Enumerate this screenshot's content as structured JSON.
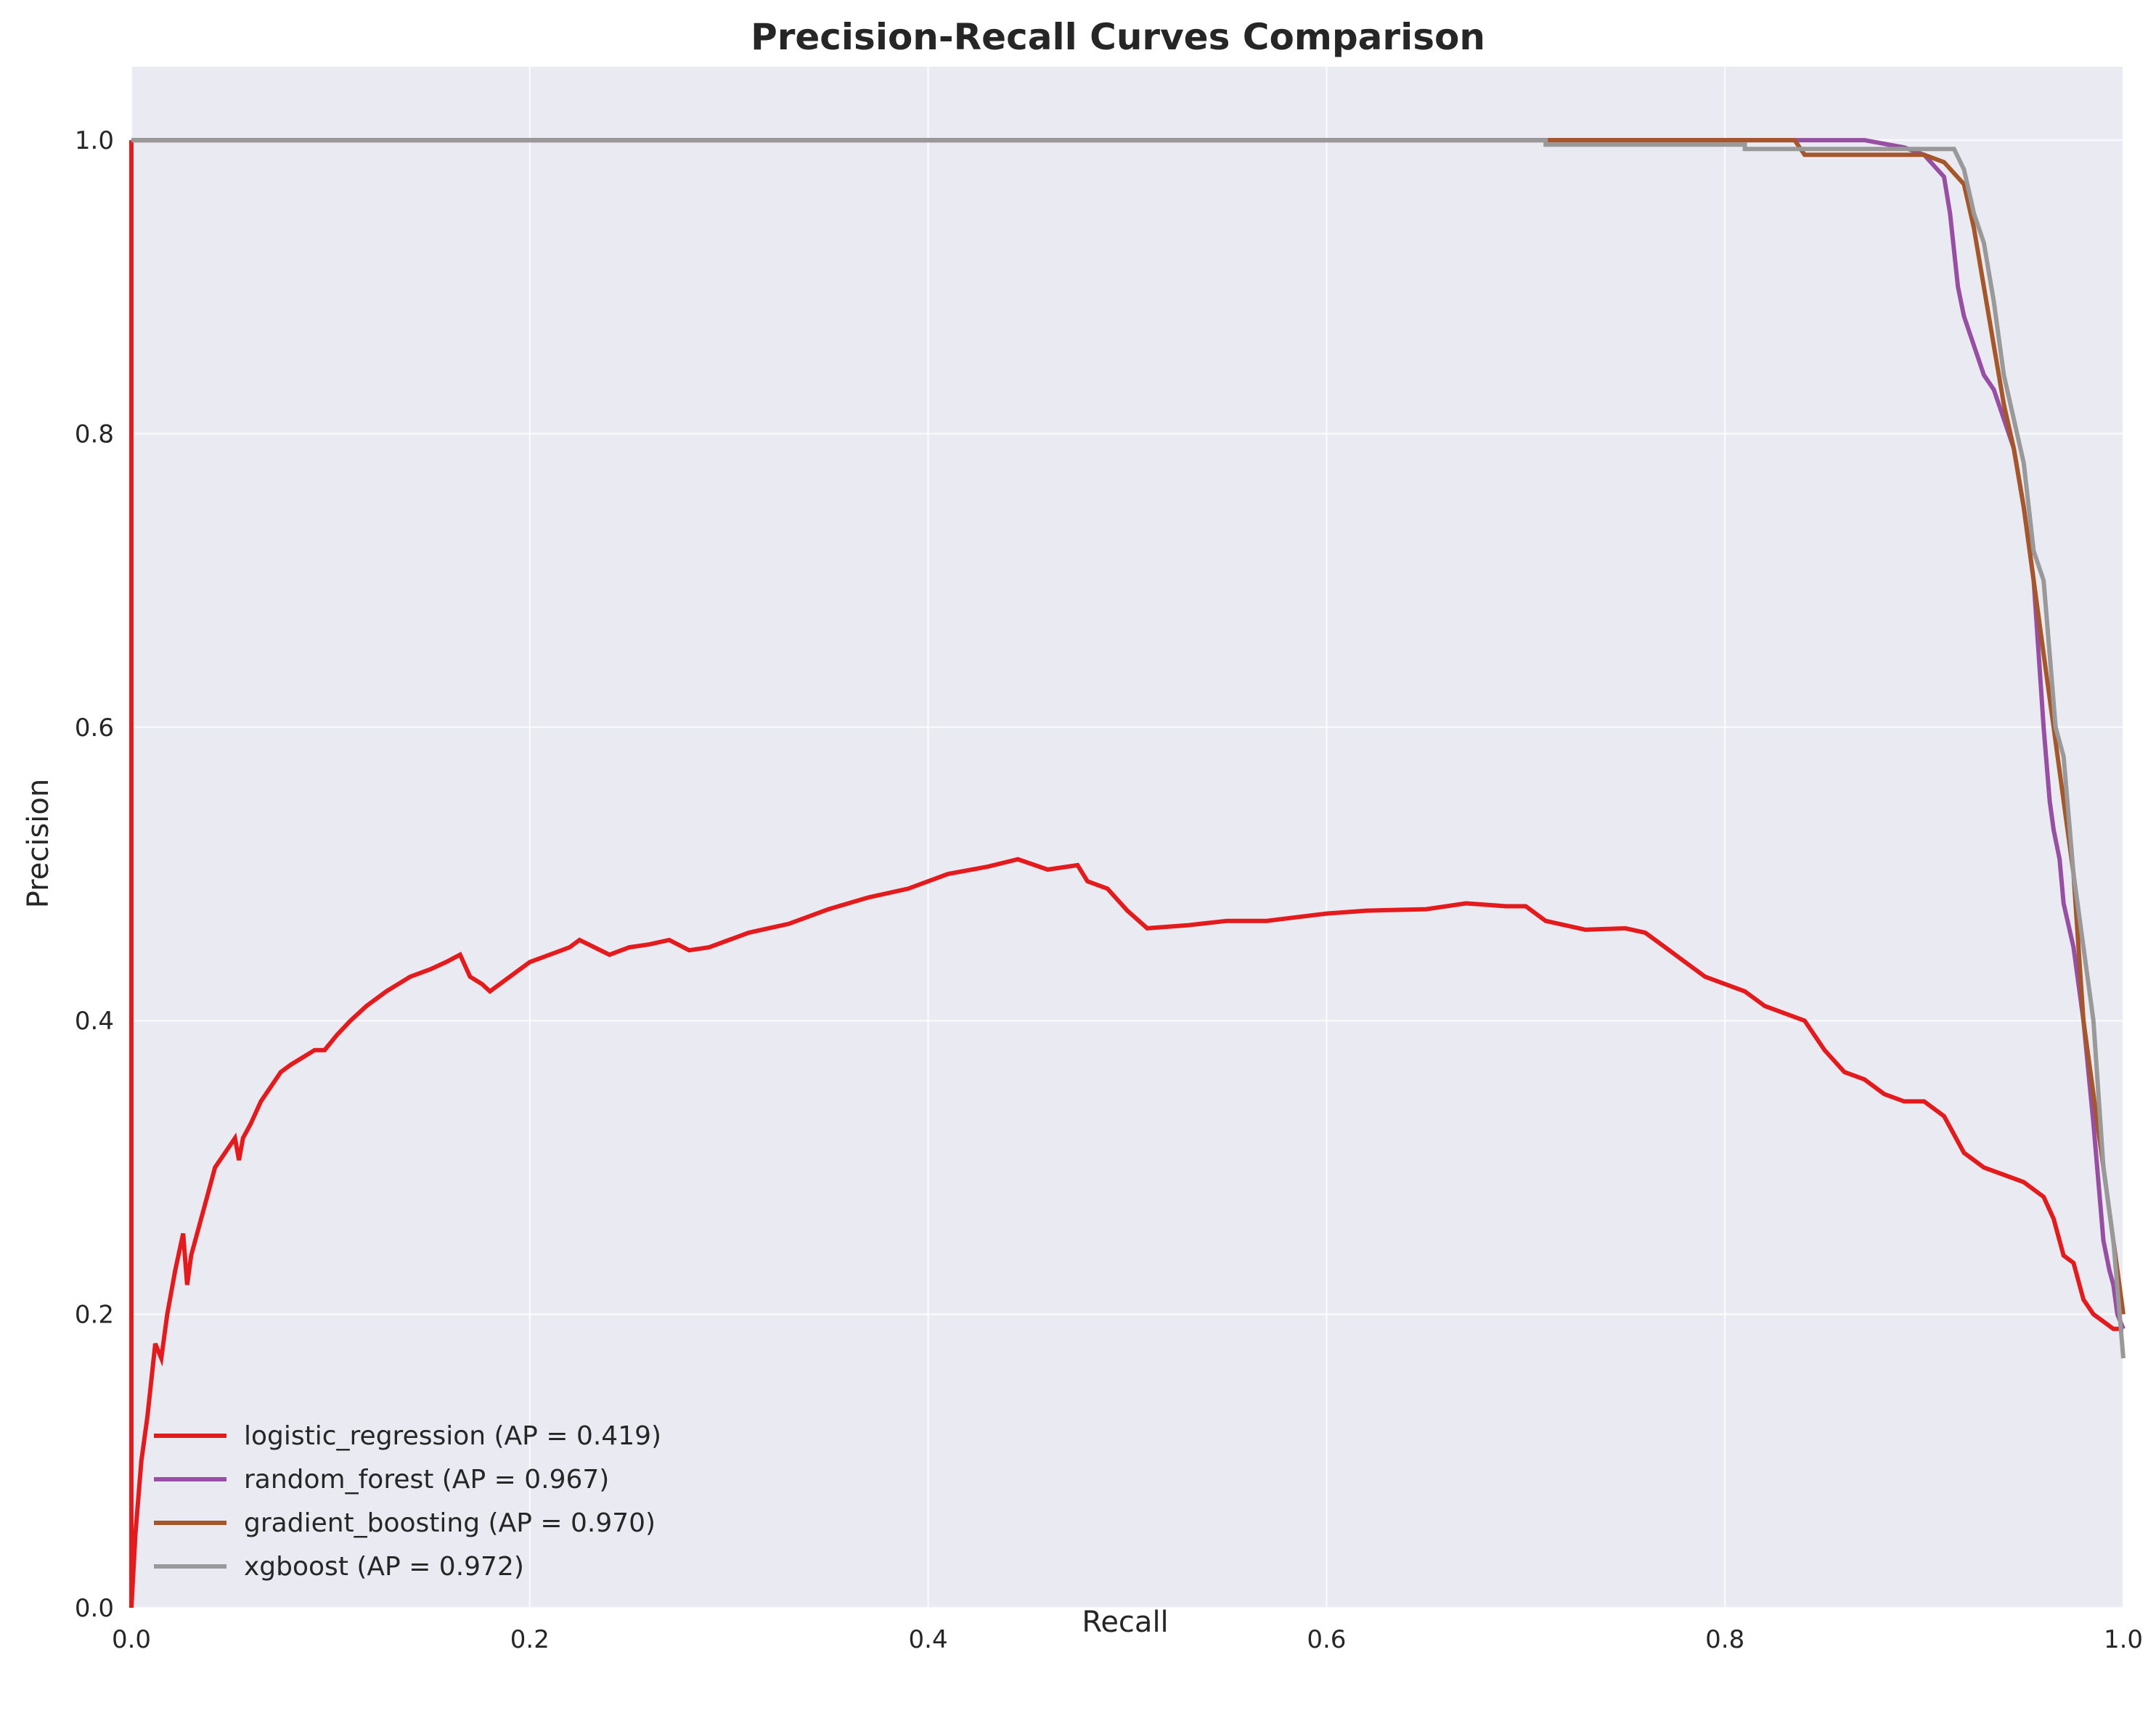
{
  "chart_data": {
    "type": "line",
    "title": "Precision-Recall Curves Comparison",
    "xlabel": "Recall",
    "ylabel": "Precision",
    "xlim": [
      0,
      1
    ],
    "ylim": [
      0,
      1.05
    ],
    "xticks": [
      0.0,
      0.2,
      0.4,
      0.6,
      0.8,
      1.0
    ],
    "xtick_labels": [
      "0.0",
      "0.2",
      "0.4",
      "0.6",
      "0.8",
      "1.0"
    ],
    "yticks": [
      0.0,
      0.2,
      0.4,
      0.6,
      0.8,
      1.0
    ],
    "ytick_labels": [
      "0.0",
      "0.2",
      "0.4",
      "0.6",
      "0.8",
      "1.0"
    ],
    "grid": true,
    "legend_position": "lower-left",
    "background_color": "#eaeaf2",
    "series": [
      {
        "name": "logistic_regression (AP = 0.419)",
        "color": "#e41a1c",
        "x": [
          0.0,
          0.0,
          0.002,
          0.005,
          0.008,
          0.012,
          0.015,
          0.018,
          0.022,
          0.026,
          0.028,
          0.03,
          0.034,
          0.038,
          0.042,
          0.047,
          0.052,
          0.054,
          0.056,
          0.06,
          0.065,
          0.07,
          0.075,
          0.08,
          0.086,
          0.092,
          0.097,
          0.103,
          0.11,
          0.118,
          0.128,
          0.14,
          0.15,
          0.158,
          0.165,
          0.17,
          0.176,
          0.18,
          0.19,
          0.2,
          0.21,
          0.22,
          0.225,
          0.24,
          0.25,
          0.26,
          0.27,
          0.28,
          0.29,
          0.3,
          0.31,
          0.33,
          0.35,
          0.37,
          0.39,
          0.41,
          0.43,
          0.445,
          0.46,
          0.475,
          0.48,
          0.49,
          0.5,
          0.51,
          0.53,
          0.55,
          0.57,
          0.6,
          0.62,
          0.65,
          0.67,
          0.69,
          0.7,
          0.71,
          0.73,
          0.75,
          0.76,
          0.77,
          0.78,
          0.79,
          0.8,
          0.81,
          0.82,
          0.83,
          0.84,
          0.85,
          0.86,
          0.87,
          0.88,
          0.89,
          0.9,
          0.91,
          0.92,
          0.93,
          0.94,
          0.95,
          0.96,
          0.965,
          0.97,
          0.975,
          0.98,
          0.985,
          0.99,
          0.995,
          1.0
        ],
        "y": [
          1.0,
          0.0,
          0.05,
          0.1,
          0.13,
          0.18,
          0.17,
          0.2,
          0.23,
          0.255,
          0.22,
          0.24,
          0.26,
          0.28,
          0.3,
          0.31,
          0.32,
          0.305,
          0.32,
          0.33,
          0.345,
          0.355,
          0.365,
          0.37,
          0.375,
          0.38,
          0.38,
          0.39,
          0.4,
          0.41,
          0.42,
          0.43,
          0.435,
          0.44,
          0.445,
          0.43,
          0.425,
          0.42,
          0.43,
          0.44,
          0.445,
          0.45,
          0.455,
          0.445,
          0.45,
          0.452,
          0.455,
          0.448,
          0.45,
          0.455,
          0.46,
          0.466,
          0.476,
          0.484,
          0.49,
          0.5,
          0.505,
          0.51,
          0.503,
          0.506,
          0.495,
          0.49,
          0.475,
          0.463,
          0.465,
          0.468,
          0.468,
          0.473,
          0.475,
          0.476,
          0.48,
          0.478,
          0.478,
          0.468,
          0.462,
          0.463,
          0.46,
          0.45,
          0.44,
          0.43,
          0.425,
          0.42,
          0.41,
          0.405,
          0.4,
          0.38,
          0.365,
          0.36,
          0.35,
          0.345,
          0.345,
          0.335,
          0.31,
          0.3,
          0.295,
          0.29,
          0.28,
          0.265,
          0.24,
          0.235,
          0.21,
          0.2,
          0.195,
          0.19,
          0.19
        ]
      },
      {
        "name": "random_forest (AP = 0.967)",
        "color": "#984ea3",
        "x": [
          0.0,
          0.87,
          0.89,
          0.9,
          0.91,
          0.913,
          0.917,
          0.92,
          0.925,
          0.93,
          0.935,
          0.94,
          0.945,
          0.95,
          0.955,
          0.96,
          0.963,
          0.965,
          0.968,
          0.97,
          0.975,
          0.98,
          0.985,
          0.99,
          0.993,
          0.995,
          0.997,
          1.0
        ],
        "y": [
          1.0,
          1.0,
          0.995,
          0.99,
          0.975,
          0.95,
          0.9,
          0.88,
          0.86,
          0.84,
          0.83,
          0.81,
          0.79,
          0.75,
          0.7,
          0.6,
          0.55,
          0.53,
          0.51,
          0.48,
          0.45,
          0.4,
          0.33,
          0.25,
          0.23,
          0.22,
          0.2,
          0.19
        ]
      },
      {
        "name": "gradient_boosting (AP = 0.970)",
        "color": "#a65628",
        "x": [
          0.0,
          0.835,
          0.84,
          0.9,
          0.91,
          0.92,
          0.925,
          0.93,
          0.935,
          0.94,
          0.945,
          0.95,
          0.955,
          0.96,
          0.965,
          0.97,
          0.975,
          0.98,
          0.985,
          0.99,
          0.995,
          1.0
        ],
        "y": [
          1.0,
          1.0,
          0.99,
          0.99,
          0.985,
          0.97,
          0.94,
          0.9,
          0.86,
          0.82,
          0.79,
          0.75,
          0.7,
          0.65,
          0.6,
          0.55,
          0.5,
          0.4,
          0.35,
          0.3,
          0.25,
          0.2
        ]
      },
      {
        "name": "xgboost (AP = 0.972)",
        "color": "#999999",
        "x": [
          0.0,
          0.71,
          0.71,
          0.81,
          0.81,
          0.915,
          0.92,
          0.925,
          0.93,
          0.935,
          0.94,
          0.945,
          0.95,
          0.955,
          0.96,
          0.963,
          0.966,
          0.97,
          0.975,
          0.98,
          0.985,
          0.99,
          0.995,
          1.0
        ],
        "y": [
          1.0,
          1.0,
          0.997,
          0.997,
          0.994,
          0.994,
          0.98,
          0.95,
          0.93,
          0.89,
          0.84,
          0.81,
          0.78,
          0.72,
          0.7,
          0.65,
          0.6,
          0.58,
          0.5,
          0.45,
          0.4,
          0.3,
          0.25,
          0.17
        ]
      }
    ]
  }
}
